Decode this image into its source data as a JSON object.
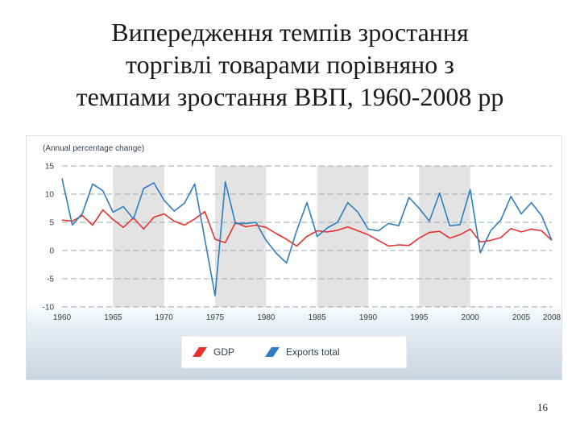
{
  "slide": {
    "title_lines": [
      "Випередження темпів зростання",
      "торгівлі товарами порівняно з",
      "темпами зростання ВВП, 1960-2008 рр"
    ],
    "page_number": "16"
  },
  "colors": {
    "gdp": "#e8312f",
    "exports": "#2f7dc1",
    "band": "#e3e3e3",
    "axis_text": "#2d3f4f"
  },
  "chart_data": {
    "type": "line",
    "title": "",
    "ylabel": "(Annual percentage change)",
    "xlabel": "",
    "xlim": [
      1960,
      2008
    ],
    "ylim": [
      -10,
      15
    ],
    "xticks": [
      "1960",
      "1965",
      "1970",
      "1975",
      "1980",
      "1985",
      "1990",
      "1995",
      "2000",
      "2005",
      "2008"
    ],
    "yticks": [
      "15",
      "10",
      "5",
      "0",
      "-5",
      "-10"
    ],
    "legend": [
      "GDP",
      "Exports total"
    ],
    "x": [
      1960,
      1961,
      1962,
      1963,
      1964,
      1965,
      1966,
      1967,
      1968,
      1969,
      1970,
      1971,
      1972,
      1973,
      1974,
      1975,
      1976,
      1977,
      1978,
      1979,
      1980,
      1981,
      1982,
      1983,
      1984,
      1985,
      1986,
      1987,
      1988,
      1989,
      1990,
      1991,
      1992,
      1993,
      1994,
      1995,
      1996,
      1997,
      1998,
      1999,
      2000,
      2001,
      2002,
      2003,
      2004,
      2005,
      2006,
      2007,
      2008
    ],
    "series": [
      {
        "name": "GDP",
        "values": [
          5.4,
          5.2,
          6.2,
          4.5,
          7.2,
          5.5,
          4.1,
          5.8,
          3.8,
          5.9,
          6.5,
          5.2,
          4.5,
          5.6,
          6.9,
          2.0,
          1.4,
          5.0,
          4.2,
          4.5,
          4.1,
          3.0,
          2.0,
          0.8,
          2.5,
          3.5,
          3.3,
          3.6,
          4.2,
          3.5,
          2.8,
          1.8,
          0.8,
          1.0,
          0.9,
          2.2,
          3.2,
          3.4,
          2.2,
          2.8,
          3.8,
          1.5,
          1.8,
          2.3,
          3.9,
          3.3,
          3.8,
          3.5,
          1.8
        ]
      },
      {
        "name": "Exports total",
        "values": [
          12.8,
          4.5,
          6.6,
          11.8,
          10.6,
          6.8,
          7.8,
          5.6,
          11.0,
          12.0,
          8.9,
          7.0,
          8.4,
          11.8,
          2.0,
          -8.0,
          12.2,
          4.8,
          4.8,
          5.0,
          1.8,
          -0.5,
          -2.2,
          3.5,
          8.5,
          2.5,
          4.0,
          5.0,
          8.5,
          6.8,
          3.8,
          3.5,
          4.8,
          4.4,
          9.4,
          7.5,
          5.2,
          10.2,
          4.4,
          4.6,
          10.8,
          -0.4,
          3.5,
          5.4,
          9.6,
          6.5,
          8.5,
          6.2,
          1.8
        ]
      }
    ]
  }
}
